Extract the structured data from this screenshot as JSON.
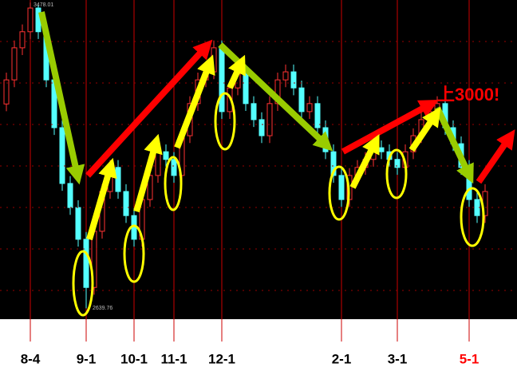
{
  "chart_data": {
    "type": "candlestick",
    "categories": [
      null,
      null,
      null,
      "8-4",
      null,
      null,
      null,
      null,
      null,
      null,
      "9-1",
      null,
      null,
      null,
      null,
      null,
      "10-1",
      null,
      null,
      null,
      null,
      "11-1",
      null,
      null,
      null,
      null,
      null,
      "12-1",
      null,
      null,
      null,
      null,
      null,
      null,
      null,
      null,
      null,
      null,
      null,
      null,
      null,
      null,
      "2-1",
      null,
      null,
      null,
      null,
      null,
      null,
      "3-1",
      null,
      null,
      null,
      null,
      null,
      null,
      null,
      null,
      "5-1",
      null,
      null
    ],
    "open": [
      3200,
      3266,
      3354,
      3398,
      3463,
      3398,
      3266,
      3135,
      2982,
      2916,
      2829,
      2697,
      2851,
      2960,
      3026,
      2960,
      2894,
      2829,
      2938,
      3004,
      3069,
      3048,
      3004,
      3113,
      3201,
      3266,
      3288,
      3354,
      3179,
      3244,
      3288,
      3201,
      3157,
      3113,
      3201,
      3266,
      3288,
      3244,
      3179,
      3201,
      3135,
      3069,
      3004,
      2938,
      3004,
      3026,
      3048,
      3080,
      3069,
      3048,
      3026,
      3069,
      3113,
      3157,
      3179,
      3201,
      3135,
      3091,
      3026,
      2938,
      2894
    ],
    "high": [
      3286,
      3374,
      3418,
      3478.01,
      3470,
      3418,
      3286,
      3155,
      3002,
      2936,
      2849,
      2871,
      2980,
      3046,
      3046,
      2980,
      2914,
      2958,
      3024,
      3089,
      3089,
      3068,
      3133,
      3221,
      3286,
      3308,
      3374,
      3374,
      3264,
      3308,
      3308,
      3221,
      3177,
      3221,
      3286,
      3308,
      3308,
      3264,
      3221,
      3221,
      3155,
      3089,
      3024,
      3024,
      3046,
      3068,
      3100,
      3100,
      3089,
      3068,
      3089,
      3133,
      3177,
      3199,
      3221,
      3221,
      3155,
      3111,
      3046,
      2958,
      2980
    ],
    "low": [
      3180,
      3246,
      3334,
      3378,
      3378,
      3246,
      3115,
      2962,
      2896,
      2809,
      2639.76,
      2677,
      2831,
      2940,
      2940,
      2874,
      2809,
      2809,
      2918,
      2984,
      3028,
      2984,
      2984,
      3093,
      3181,
      3246,
      3268,
      3159,
      3159,
      3224,
      3181,
      3137,
      3093,
      3093,
      3181,
      3246,
      3224,
      3159,
      3159,
      3115,
      3049,
      2984,
      2918,
      2918,
      2984,
      3006,
      3028,
      3049,
      3028,
      3006,
      3006,
      3049,
      3093,
      3137,
      3159,
      3115,
      3071,
      3006,
      2918,
      2874,
      2874
    ],
    "close": [
      3266,
      3354,
      3398,
      3463,
      3398,
      3266,
      3135,
      2982,
      2916,
      2829,
      2697,
      2851,
      2960,
      3026,
      2960,
      2894,
      2829,
      2938,
      3004,
      3069,
      3048,
      3004,
      3113,
      3201,
      3266,
      3288,
      3354,
      3179,
      3244,
      3288,
      3201,
      3157,
      3113,
      3201,
      3266,
      3288,
      3244,
      3179,
      3201,
      3135,
      3069,
      3004,
      2938,
      3004,
      3026,
      3048,
      3080,
      3069,
      3048,
      3026,
      3069,
      3113,
      3157,
      3179,
      3201,
      3135,
      3091,
      3026,
      2938,
      2894,
      2960
    ],
    "up_color": "#ff3232",
    "down_color": "#54ffff",
    "ylim": [
      2610,
      3485
    ],
    "annotation": "上3000!"
  }
}
